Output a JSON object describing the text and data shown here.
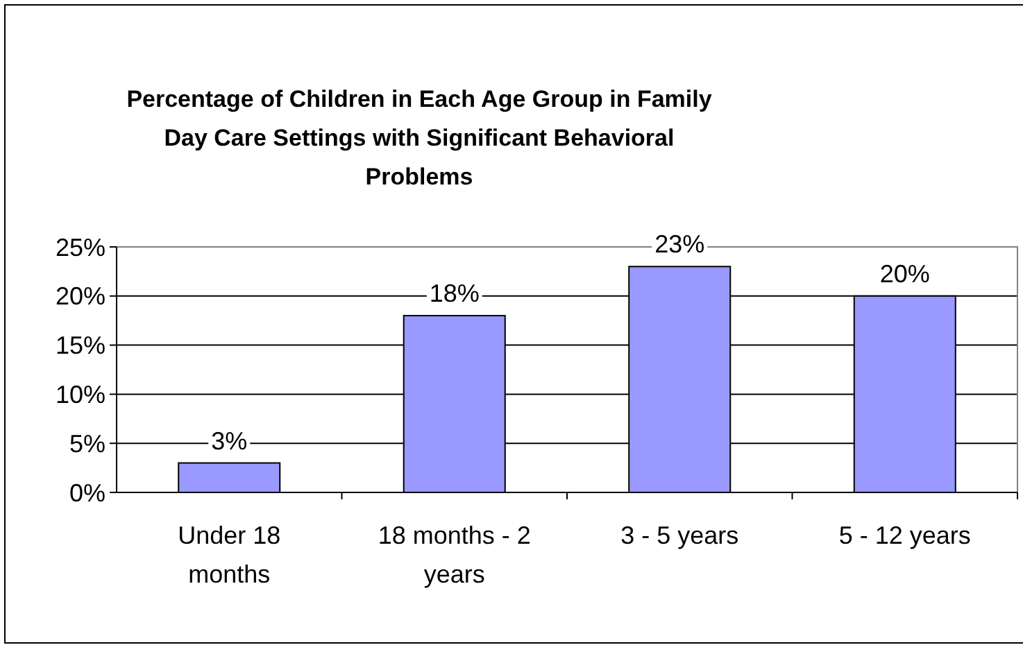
{
  "chart_data": {
    "type": "bar",
    "title": "Percentage of Children in Each Age Group in Family Day Care Settings with Significant Behavioral Problems",
    "categories": [
      "Under 18 months",
      "18 months - 2 years",
      "3 - 5 years",
      "5 - 12 years"
    ],
    "values": [
      3,
      18,
      23,
      20
    ],
    "color": "#9999ff",
    "value_labels": [
      "3%",
      "18%",
      "23%",
      "20%"
    ],
    "ylim": [
      0,
      25
    ],
    "yticks": [
      {
        "value": 0,
        "label": "0%"
      },
      {
        "value": 5,
        "label": "5%"
      },
      {
        "value": 10,
        "label": "10%"
      },
      {
        "value": 15,
        "label": "15%"
      },
      {
        "value": 20,
        "label": "20%"
      },
      {
        "value": 25,
        "label": "25%"
      }
    ],
    "grid": "y"
  }
}
